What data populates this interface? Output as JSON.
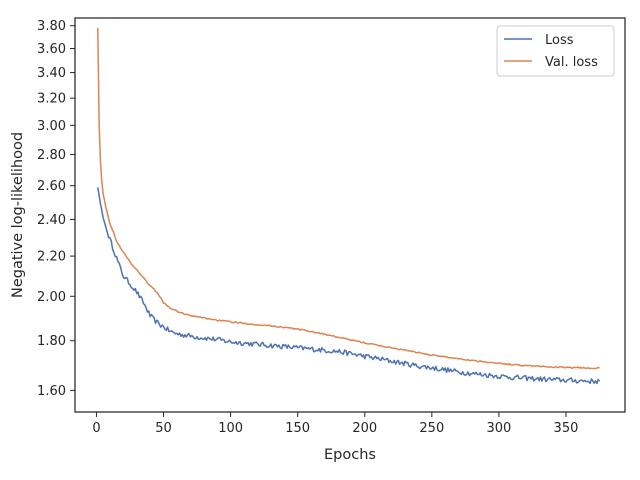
{
  "chart_data": {
    "type": "line",
    "title": "",
    "xlabel": "Epochs",
    "ylabel": "Negative log-likelihood",
    "xlim": [
      -16,
      394
    ],
    "ylim": [
      1.52,
      3.87
    ],
    "yscale": "log",
    "grid": false,
    "legend": "top-right",
    "xticks": [
      0,
      50,
      100,
      150,
      200,
      250,
      300,
      350
    ],
    "yticks": [
      1.6,
      1.8,
      2.0,
      2.2,
      2.4,
      2.6,
      2.8,
      3.0,
      3.2,
      3.4,
      3.6,
      3.8
    ],
    "xtick_labels": [
      "0",
      "50",
      "100",
      "150",
      "200",
      "250",
      "300",
      "350"
    ],
    "ytick_labels": [
      "1.60",
      "1.80",
      "2.00",
      "2.20",
      "2.40",
      "2.60",
      "2.80",
      "3.00",
      "3.20",
      "3.40",
      "3.60",
      "3.80"
    ],
    "series": [
      {
        "name": "Loss",
        "color": "#4c72b0",
        "points": [
          [
            1,
            2.59
          ],
          [
            3,
            2.49
          ],
          [
            5,
            2.41
          ],
          [
            8,
            2.33
          ],
          [
            12,
            2.25
          ],
          [
            16,
            2.17
          ],
          [
            20,
            2.1
          ],
          [
            25,
            2.06
          ],
          [
            30,
            2.02
          ],
          [
            35,
            1.97
          ],
          [
            40,
            1.91
          ],
          [
            45,
            1.88
          ],
          [
            50,
            1.86
          ],
          [
            55,
            1.84
          ],
          [
            60,
            1.83
          ],
          [
            70,
            1.82
          ],
          [
            80,
            1.812
          ],
          [
            90,
            1.805
          ],
          [
            100,
            1.795
          ],
          [
            110,
            1.79
          ],
          [
            120,
            1.785
          ],
          [
            130,
            1.78
          ],
          [
            140,
            1.775
          ],
          [
            150,
            1.77
          ],
          [
            160,
            1.765
          ],
          [
            170,
            1.76
          ],
          [
            180,
            1.755
          ],
          [
            190,
            1.745
          ],
          [
            200,
            1.735
          ],
          [
            210,
            1.725
          ],
          [
            220,
            1.715
          ],
          [
            230,
            1.705
          ],
          [
            240,
            1.695
          ],
          [
            250,
            1.688
          ],
          [
            260,
            1.68
          ],
          [
            270,
            1.672
          ],
          [
            280,
            1.665
          ],
          [
            290,
            1.66
          ],
          [
            300,
            1.655
          ],
          [
            310,
            1.65
          ],
          [
            320,
            1.647
          ],
          [
            330,
            1.644
          ],
          [
            340,
            1.641
          ],
          [
            350,
            1.639
          ],
          [
            360,
            1.637
          ],
          [
            370,
            1.635
          ],
          [
            375,
            1.635
          ]
        ]
      },
      {
        "name": "Val. loss",
        "color": "#dd8452",
        "points": [
          [
            1,
            3.78
          ],
          [
            2,
            3.0
          ],
          [
            3,
            2.75
          ],
          [
            4,
            2.62
          ],
          [
            5,
            2.55
          ],
          [
            7,
            2.47
          ],
          [
            10,
            2.38
          ],
          [
            15,
            2.28
          ],
          [
            20,
            2.22
          ],
          [
            25,
            2.17
          ],
          [
            30,
            2.13
          ],
          [
            35,
            2.09
          ],
          [
            40,
            2.05
          ],
          [
            45,
            2.02
          ],
          [
            50,
            1.97
          ],
          [
            55,
            1.945
          ],
          [
            60,
            1.93
          ],
          [
            70,
            1.91
          ],
          [
            80,
            1.9
          ],
          [
            90,
            1.89
          ],
          [
            100,
            1.882
          ],
          [
            110,
            1.876
          ],
          [
            120,
            1.87
          ],
          [
            130,
            1.865
          ],
          [
            140,
            1.858
          ],
          [
            150,
            1.85
          ],
          [
            160,
            1.84
          ],
          [
            170,
            1.828
          ],
          [
            180,
            1.815
          ],
          [
            190,
            1.803
          ],
          [
            200,
            1.791
          ],
          [
            210,
            1.78
          ],
          [
            220,
            1.77
          ],
          [
            230,
            1.76
          ],
          [
            240,
            1.75
          ],
          [
            250,
            1.74
          ],
          [
            260,
            1.732
          ],
          [
            270,
            1.725
          ],
          [
            280,
            1.718
          ],
          [
            290,
            1.712
          ],
          [
            300,
            1.706
          ],
          [
            310,
            1.701
          ],
          [
            320,
            1.697
          ],
          [
            330,
            1.694
          ],
          [
            340,
            1.691
          ],
          [
            350,
            1.689
          ],
          [
            360,
            1.688
          ],
          [
            370,
            1.687
          ],
          [
            375,
            1.687
          ]
        ]
      }
    ]
  }
}
